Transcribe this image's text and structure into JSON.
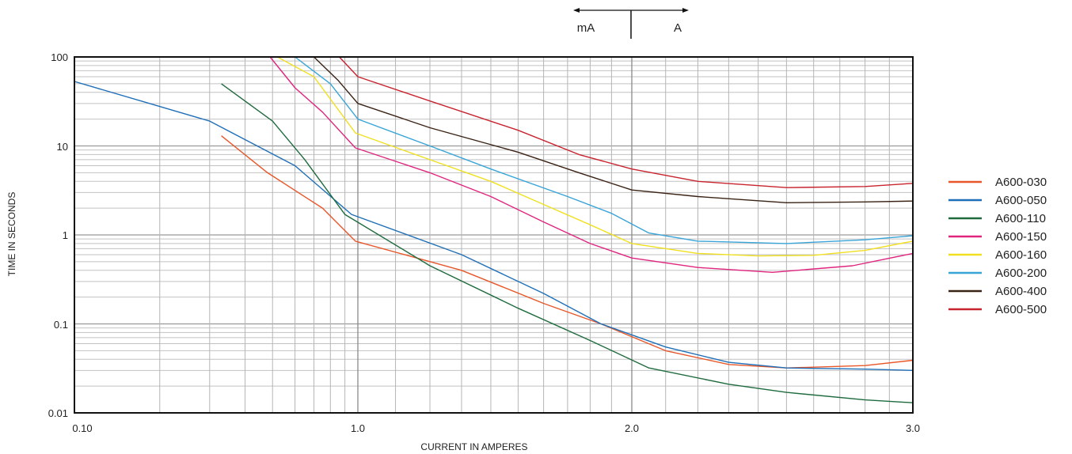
{
  "chart_data": {
    "type": "line",
    "xlabel": "CURRENT IN AMPERES",
    "ylabel": "TIME IN SECONDS",
    "x_scale": "segmented",
    "y_scale": "log",
    "ylim": [
      0.01,
      100
    ],
    "x_ticks": [
      "0.10",
      "1.0",
      "2.0",
      "3.0"
    ],
    "y_ticks": [
      "100",
      "10",
      "1",
      "0.1",
      "0.01"
    ],
    "unit_marker": {
      "left": "mA",
      "right": "A"
    },
    "grid": true,
    "legend_position": "right",
    "series": [
      {
        "name": "A600-030",
        "color": "#e8572a",
        "points": [
          [
            0.33,
            13
          ],
          [
            0.48,
            5
          ],
          [
            0.75,
            2
          ],
          [
            0.98,
            0.85
          ],
          [
            1.3,
            0.4
          ],
          [
            1.6,
            0.17
          ],
          [
            1.85,
            0.1
          ],
          [
            2.1,
            0.05
          ],
          [
            2.3,
            0.035
          ],
          [
            2.5,
            0.032
          ],
          [
            2.8,
            0.034
          ],
          [
            3.0,
            0.039
          ]
        ]
      },
      {
        "name": "A600-050",
        "color": "#1e6fb8",
        "points": [
          [
            0.1,
            53
          ],
          [
            0.3,
            19
          ],
          [
            0.6,
            6
          ],
          [
            0.95,
            1.7
          ],
          [
            1.3,
            0.6
          ],
          [
            1.6,
            0.22
          ],
          [
            1.85,
            0.1
          ],
          [
            2.1,
            0.055
          ],
          [
            2.3,
            0.037
          ],
          [
            2.5,
            0.032
          ],
          [
            2.8,
            0.031
          ],
          [
            3.0,
            0.03
          ]
        ]
      },
      {
        "name": "A600-110",
        "color": "#1f6b3e",
        "points": [
          [
            0.33,
            50
          ],
          [
            0.5,
            19
          ],
          [
            0.65,
            7
          ],
          [
            0.9,
            1.7
          ],
          [
            1.2,
            0.45
          ],
          [
            1.5,
            0.15
          ],
          [
            1.8,
            0.065
          ],
          [
            2.05,
            0.032
          ],
          [
            2.3,
            0.021
          ],
          [
            2.5,
            0.017
          ],
          [
            2.8,
            0.014
          ],
          [
            3.0,
            0.013
          ]
        ]
      },
      {
        "name": "A600-150",
        "color": "#e0257f",
        "points": [
          [
            0.49,
            100
          ],
          [
            0.6,
            45
          ],
          [
            0.75,
            24
          ],
          [
            0.98,
            9.5
          ],
          [
            1.2,
            5
          ],
          [
            1.4,
            2.7
          ],
          [
            1.6,
            1.4
          ],
          [
            1.8,
            0.8
          ],
          [
            2.0,
            0.55
          ],
          [
            2.2,
            0.43
          ],
          [
            2.45,
            0.38
          ],
          [
            2.75,
            0.45
          ],
          [
            3.0,
            0.62
          ]
        ]
      },
      {
        "name": "A600-160",
        "color": "#f0e020",
        "points": [
          [
            0.52,
            100
          ],
          [
            0.7,
            60
          ],
          [
            0.98,
            14
          ],
          [
            1.2,
            7
          ],
          [
            1.4,
            4
          ],
          [
            1.6,
            2.2
          ],
          [
            1.8,
            1.3
          ],
          [
            2.0,
            0.8
          ],
          [
            2.2,
            0.62
          ],
          [
            2.4,
            0.58
          ],
          [
            2.6,
            0.59
          ],
          [
            2.8,
            0.67
          ],
          [
            3.0,
            0.85
          ]
        ]
      },
      {
        "name": "A600-200",
        "color": "#38a4d8",
        "points": [
          [
            0.6,
            100
          ],
          [
            0.8,
            50
          ],
          [
            1.0,
            20
          ],
          [
            1.2,
            10
          ],
          [
            1.4,
            5.5
          ],
          [
            1.7,
            2.7
          ],
          [
            1.9,
            1.75
          ],
          [
            2.05,
            1.05
          ],
          [
            2.2,
            0.85
          ],
          [
            2.5,
            0.8
          ],
          [
            2.8,
            0.88
          ],
          [
            3.0,
            0.98
          ]
        ]
      },
      {
        "name": "A600-400",
        "color": "#3a2315",
        "points": [
          [
            0.7,
            100
          ],
          [
            0.85,
            55
          ],
          [
            1.0,
            30
          ],
          [
            1.2,
            16
          ],
          [
            1.5,
            8.5
          ],
          [
            1.75,
            5
          ],
          [
            2.0,
            3.2
          ],
          [
            2.2,
            2.7
          ],
          [
            2.5,
            2.3
          ],
          [
            2.8,
            2.35
          ],
          [
            3.0,
            2.4
          ]
        ]
      },
      {
        "name": "A600-500",
        "color": "#c8232e",
        "points": [
          [
            0.86,
            100
          ],
          [
            1.0,
            60
          ],
          [
            1.2,
            32
          ],
          [
            1.5,
            15
          ],
          [
            1.75,
            8
          ],
          [
            2.0,
            5.5
          ],
          [
            2.2,
            4
          ],
          [
            2.5,
            3.4
          ],
          [
            2.8,
            3.5
          ],
          [
            3.0,
            3.8
          ]
        ]
      }
    ]
  }
}
